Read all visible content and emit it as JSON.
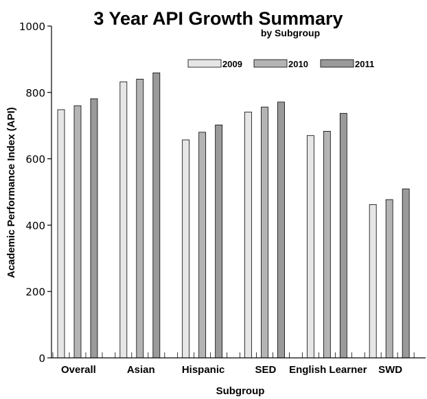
{
  "chart_data": {
    "type": "bar",
    "title": "3 Year API Growth Summary",
    "subtitle": "by Subgroup",
    "xlabel": "Subgroup",
    "ylabel": "Academic Performance Index (API)",
    "ylim": [
      0,
      1000
    ],
    "yticks": [
      "0",
      "200",
      "400",
      "600",
      "800",
      "1000"
    ],
    "categories": [
      "Overall",
      "Asian",
      "Hispanic",
      "SED",
      "English Learner",
      "SWD"
    ],
    "series": [
      {
        "name": "2009",
        "color": "#e6e6e6",
        "values": [
          748,
          832,
          657,
          741,
          670,
          462
        ]
      },
      {
        "name": "2010",
        "color": "#b4b4b4",
        "values": [
          760,
          840,
          680,
          756,
          683,
          477
        ]
      },
      {
        "name": "2011",
        "color": "#9a9a9a",
        "values": [
          781,
          859,
          702,
          771,
          737,
          509
        ]
      }
    ],
    "legend_position": "top-right",
    "grid": false
  }
}
